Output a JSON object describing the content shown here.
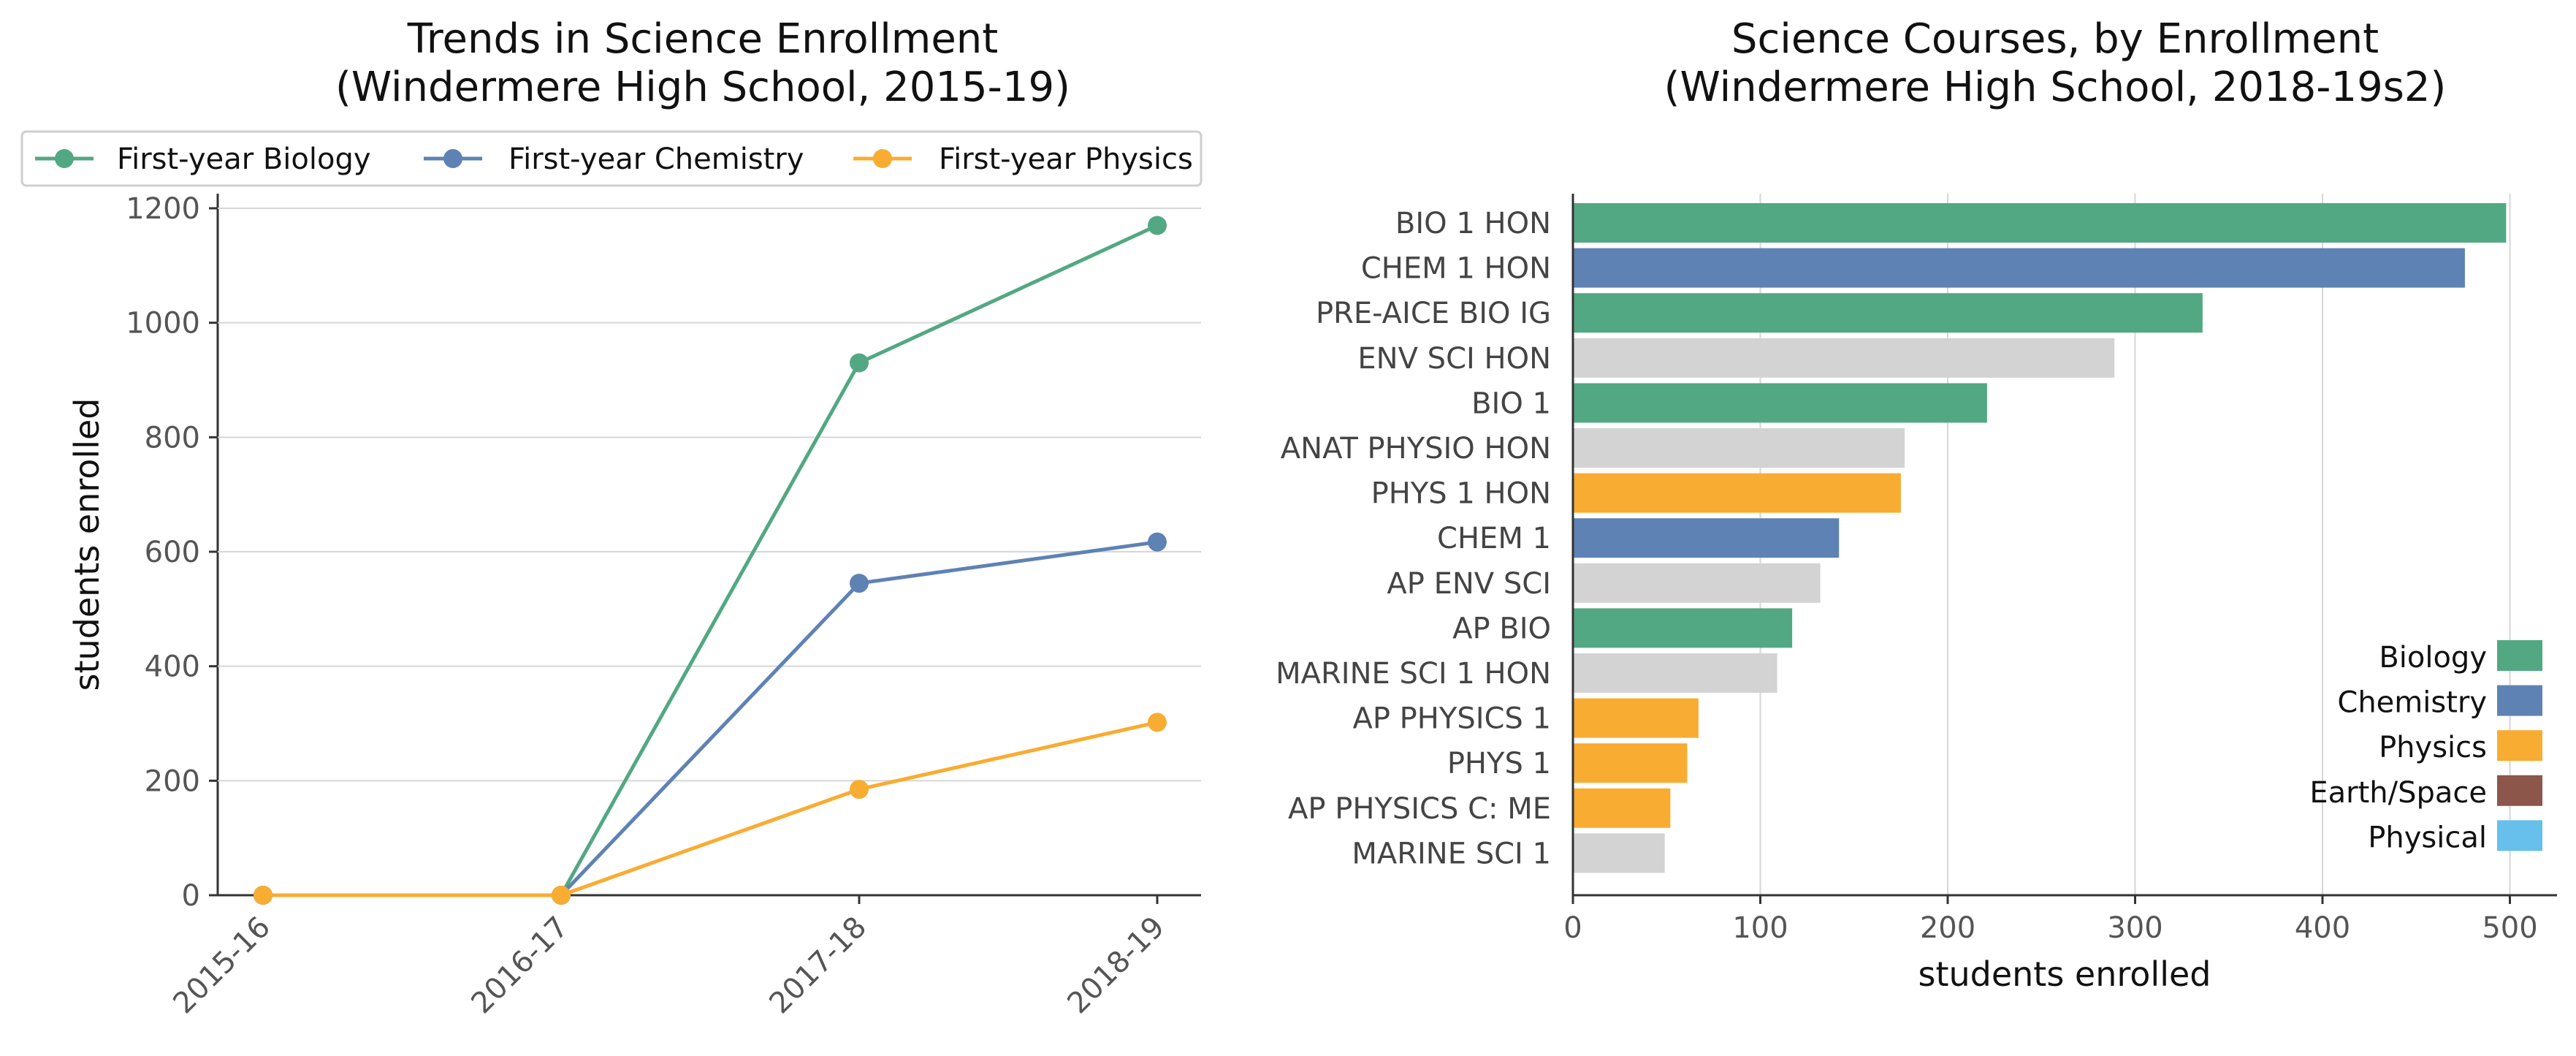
{
  "chart_data": [
    {
      "type": "line",
      "title": "Trends in Science Enrollment",
      "subtitle": "(Windermere High School, 2015-19)",
      "xlabel": "",
      "ylabel": "students enrolled",
      "categories": [
        "2015-16",
        "2016-17",
        "2017-18",
        "2018-19"
      ],
      "ylim": [
        0,
        1200
      ],
      "yticks": [
        0,
        200,
        400,
        600,
        800,
        1000,
        1200
      ],
      "grid": true,
      "legend_position": "top",
      "series": [
        {
          "name": "First-year Biology",
          "color": "#52a882",
          "values": [
            0,
            0,
            930,
            1170
          ]
        },
        {
          "name": "First-year Chemistry",
          "color": "#5f82b4",
          "values": [
            0,
            0,
            545,
            617
          ]
        },
        {
          "name": "First-year Physics",
          "color": "#f9ac32",
          "values": [
            0,
            0,
            185,
            302
          ]
        }
      ]
    },
    {
      "type": "bar",
      "orientation": "horizontal",
      "title": "Science Courses, by Enrollment",
      "subtitle": "(Windermere High School, 2018-19s2)",
      "xlabel": "students enrolled",
      "ylabel": "",
      "xlim": [
        0,
        520
      ],
      "xticks": [
        0,
        100,
        200,
        300,
        400,
        500
      ],
      "grid": true,
      "legend_position": "bottom-right",
      "categories": [
        "BIO 1 HON",
        "CHEM 1 HON",
        "PRE-AICE BIO IG",
        "ENV SCI HON",
        "BIO 1",
        "ANAT PHYSIO HON",
        "PHYS 1 HON",
        "CHEM 1",
        "AP ENV SCI",
        "AP BIO",
        "MARINE SCI 1 HON",
        "AP PHYSICS 1",
        "PHYS 1",
        "AP PHYSICS C: ME",
        "MARINE SCI 1"
      ],
      "values": [
        498,
        476,
        336,
        289,
        221,
        177,
        175,
        142,
        132,
        117,
        109,
        67,
        61,
        52,
        49
      ],
      "bar_groups": [
        "Biology",
        "Chemistry",
        "Biology",
        "Other",
        "Biology",
        "Other",
        "Physics",
        "Chemistry",
        "Other",
        "Biology",
        "Other",
        "Physics",
        "Physics",
        "Physics",
        "Other"
      ],
      "group_colors": {
        "Biology": "#52a882",
        "Chemistry": "#5f82b4",
        "Physics": "#f9ac32",
        "Earth/Space": "#8c564b",
        "Physical": "#67bfeb",
        "Other": "#d3d3d3"
      },
      "legend": [
        "Biology",
        "Chemistry",
        "Physics",
        "Earth/Space",
        "Physical"
      ]
    }
  ]
}
